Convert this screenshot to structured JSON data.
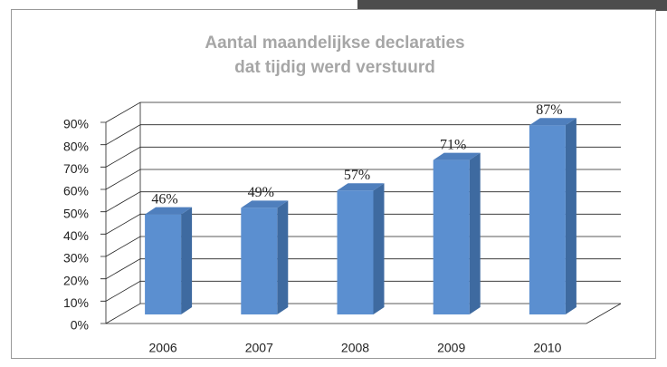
{
  "chart_data": {
    "type": "bar3d",
    "title": [
      "Aantal maandelijkse declaraties",
      "dat tijdig werd verstuurd"
    ],
    "categories": [
      "2006",
      "2007",
      "2008",
      "2009",
      "2010"
    ],
    "values": [
      46,
      49,
      57,
      71,
      87
    ],
    "value_labels": [
      "46%",
      "49%",
      "57%",
      "71%",
      "87%"
    ],
    "color": "#5b8fd0",
    "ylim": [
      0,
      90
    ],
    "yticks": [
      {
        "value": 0,
        "label": "0%"
      },
      {
        "value": 10,
        "label": "10%"
      },
      {
        "value": 20,
        "label": "20%"
      },
      {
        "value": 30,
        "label": "30%"
      },
      {
        "value": 40,
        "label": "40%"
      },
      {
        "value": 50,
        "label": "50%"
      },
      {
        "value": 60,
        "label": "60%"
      },
      {
        "value": 70,
        "label": "70%"
      },
      {
        "value": 80,
        "label": "80%"
      },
      {
        "value": 90,
        "label": "90%"
      }
    ],
    "grid": true
  }
}
